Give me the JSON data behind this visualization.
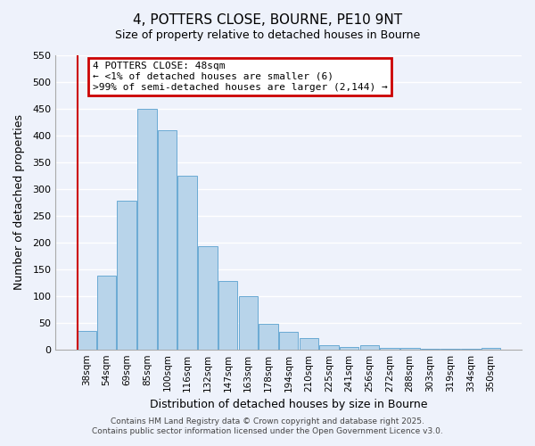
{
  "title": "4, POTTERS CLOSE, BOURNE, PE10 9NT",
  "subtitle": "Size of property relative to detached houses in Bourne",
  "xlabel": "Distribution of detached houses by size in Bourne",
  "ylabel": "Number of detached properties",
  "bar_color": "#b8d4ea",
  "bar_edge_color": "#6aaad4",
  "background_color": "#eef2fb",
  "grid_color": "#ffffff",
  "categories": [
    "38sqm",
    "54sqm",
    "69sqm",
    "85sqm",
    "100sqm",
    "116sqm",
    "132sqm",
    "147sqm",
    "163sqm",
    "178sqm",
    "194sqm",
    "210sqm",
    "225sqm",
    "241sqm",
    "256sqm",
    "272sqm",
    "288sqm",
    "303sqm",
    "319sqm",
    "334sqm",
    "350sqm"
  ],
  "values": [
    35,
    137,
    278,
    450,
    410,
    325,
    192,
    127,
    100,
    47,
    32,
    21,
    8,
    5,
    8,
    3,
    2,
    1,
    1,
    1,
    2
  ],
  "ylim": [
    0,
    550
  ],
  "yticks": [
    0,
    50,
    100,
    150,
    200,
    250,
    300,
    350,
    400,
    450,
    500,
    550
  ],
  "annotation_title": "4 POTTERS CLOSE: 48sqm",
  "annotation_line1": "← <1% of detached houses are smaller (6)",
  "annotation_line2": ">99% of semi-detached houses are larger (2,144) →",
  "annotation_box_color": "#ffffff",
  "annotation_box_edge_color": "#cc0000",
  "marker_line_color": "#cc0000",
  "footer1": "Contains HM Land Registry data © Crown copyright and database right 2025.",
  "footer2": "Contains public sector information licensed under the Open Government Licence v3.0."
}
